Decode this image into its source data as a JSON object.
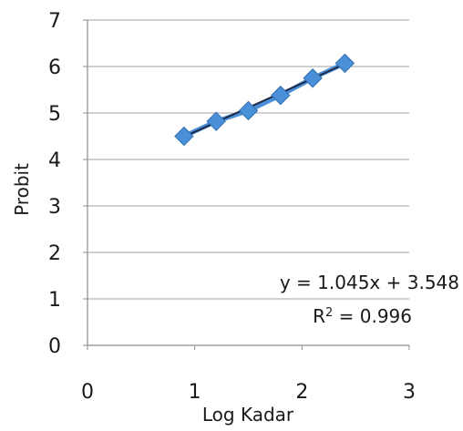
{
  "chart_data": {
    "type": "scatter",
    "title": "",
    "xlabel": "Log Kadar",
    "ylabel": "Probit",
    "xlim": [
      0,
      3
    ],
    "ylim": [
      0,
      7
    ],
    "x_ticks": [
      "0",
      "1",
      "2",
      "3"
    ],
    "y_ticks": [
      "0",
      "1",
      "2",
      "3",
      "4",
      "5",
      "6",
      "7"
    ],
    "grid": "horizontal",
    "series": [
      {
        "x": [
          0.9,
          1.2,
          1.5,
          1.8,
          2.1,
          2.4
        ],
        "y": [
          4.5,
          4.82,
          5.05,
          5.38,
          5.75,
          6.07
        ],
        "color": "#4a90d9",
        "marker": "diamond"
      }
    ],
    "trendline": {
      "x_range": [
        0.9,
        2.4
      ],
      "slope": 1.045,
      "intercept": 3.548,
      "color": "#1f2a44",
      "equation": "y = 1.045x + 3.548",
      "r2_prefix": "R",
      "r2_sup": "2",
      "r2_rest": " = 0.996"
    }
  },
  "colors": {
    "grid": "#a0a0a0",
    "axis": "#8c8c8c",
    "marker_edge": "#2f6fb0"
  }
}
